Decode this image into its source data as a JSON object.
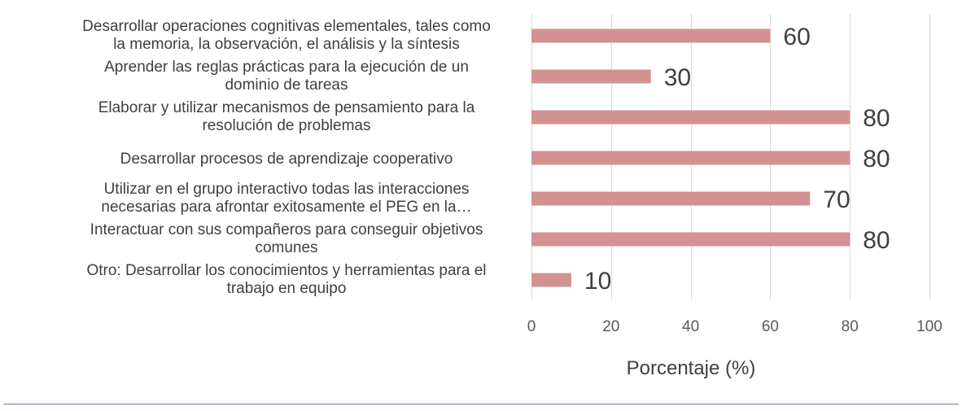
{
  "chart_data": {
    "type": "bar",
    "orientation": "horizontal",
    "categories": [
      [
        "Desarrollar operaciones cognitivas elementales, tales como",
        "la memoria, la observación, el análisis y la síntesis"
      ],
      [
        "Aprender las reglas prácticas para la ejecución de un",
        "dominio de tareas"
      ],
      [
        "Elaborar y utilizar mecanismos de pensamiento para la",
        "resolución de problemas"
      ],
      [
        "Desarrollar procesos de aprendizaje cooperativo"
      ],
      [
        "Utilizar en el grupo interactivo todas las interacciones",
        "necesarias para afrontar exitosamente el PEG en la…"
      ],
      [
        "Interactuar con sus compañeros para conseguir objetivos",
        "comunes"
      ],
      [
        "Otro: Desarrollar los conocimientos y herramientas para el",
        "trabajo en equipo"
      ]
    ],
    "values": [
      60,
      30,
      80,
      80,
      70,
      80,
      10
    ],
    "data_labels": [
      "60",
      "30",
      "80",
      "80",
      "70",
      "80",
      "10"
    ],
    "xlabel": "Porcentaje (%)",
    "xlim": [
      0,
      100
    ],
    "xticks": [
      "0",
      "20",
      "40",
      "60",
      "80",
      "100"
    ],
    "grid": "vertical",
    "legend": "none",
    "colors": {
      "bar": "#d39292",
      "grid": "#d9d9d9",
      "text": "#404040",
      "tick_text": "#595959",
      "rule": "#8e6a9e"
    }
  }
}
